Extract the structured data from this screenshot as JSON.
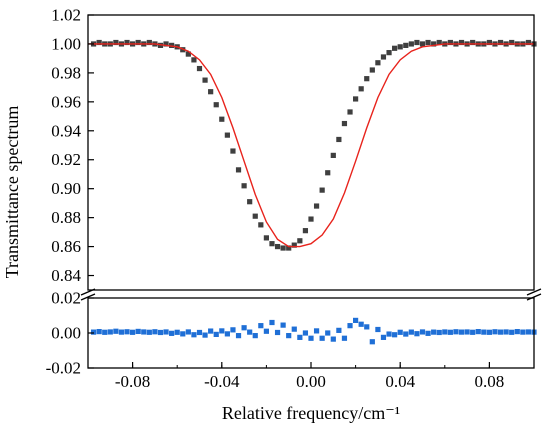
{
  "chart_data": {
    "type": "scatter",
    "xlabel": "Relative frequency/cm⁻¹",
    "ylabel": "Transmittance spectrum",
    "xlim": [
      -0.1,
      0.1
    ],
    "x_ticks": [
      -0.08,
      -0.04,
      0.0,
      0.04,
      0.08
    ],
    "x_tick_labels": [
      "-0.08",
      "-0.04",
      "0.00",
      "0.04",
      "0.08"
    ],
    "top_panel": {
      "ylim": [
        0.83,
        1.02
      ],
      "y_ticks": [
        0.84,
        0.86,
        0.88,
        0.9,
        0.92,
        0.94,
        0.96,
        0.98,
        1.0,
        1.02
      ],
      "y_tick_labels": [
        "0.84",
        "0.86",
        "0.88",
        "0.90",
        "0.92",
        "0.94",
        "0.96",
        "0.98",
        "1.00",
        "1.02"
      ],
      "series": [
        {
          "kind": "markers",
          "color": "#3f3f3f",
          "x": [
            -0.0975,
            -0.095,
            -0.0925,
            -0.09,
            -0.0875,
            -0.085,
            -0.0825,
            -0.08,
            -0.0775,
            -0.075,
            -0.0725,
            -0.07,
            -0.0675,
            -0.065,
            -0.0625,
            -0.06,
            -0.0575,
            -0.055,
            -0.0525,
            -0.05,
            -0.0475,
            -0.045,
            -0.0425,
            -0.04,
            -0.0375,
            -0.035,
            -0.0325,
            -0.03,
            -0.0275,
            -0.025,
            -0.0225,
            -0.02,
            -0.0175,
            -0.015,
            -0.0125,
            -0.01,
            -0.0075,
            -0.005,
            -0.0025,
            0.0,
            0.0025,
            0.005,
            0.0075,
            0.01,
            0.0125,
            0.015,
            0.0175,
            0.02,
            0.0225,
            0.025,
            0.0275,
            0.03,
            0.0325,
            0.035,
            0.0375,
            0.04,
            0.0425,
            0.045,
            0.0475,
            0.05,
            0.0525,
            0.055,
            0.0575,
            0.06,
            0.0625,
            0.065,
            0.0675,
            0.07,
            0.0725,
            0.075,
            0.0775,
            0.08,
            0.0825,
            0.085,
            0.0875,
            0.09,
            0.0925,
            0.095,
            0.0975,
            0.1
          ],
          "y": [
            1.0,
            1.001,
            1.0,
            1.0,
            1.001,
            1.0,
            1.001,
            1.0,
            1.001,
            1.0,
            1.001,
            1.0,
            0.999,
            1.0,
            0.999,
            0.998,
            0.996,
            0.993,
            0.989,
            0.983,
            0.975,
            0.967,
            0.958,
            0.948,
            0.937,
            0.926,
            0.913,
            0.902,
            0.891,
            0.881,
            0.875,
            0.866,
            0.862,
            0.86,
            0.859,
            0.859,
            0.861,
            0.864,
            0.871,
            0.879,
            0.888,
            0.899,
            0.911,
            0.923,
            0.934,
            0.945,
            0.953,
            0.962,
            0.969,
            0.976,
            0.982,
            0.987,
            0.991,
            0.994,
            0.997,
            0.998,
            0.999,
            1.0,
            1.001,
            1.0,
            1.001,
            1.0,
            1.001,
            1.0,
            1.001,
            1.0,
            1.001,
            1.0,
            1.001,
            1.0,
            1.0,
            1.001,
            1.0,
            1.001,
            1.0,
            1.001,
            1.0,
            1.0,
            1.001,
            1.0
          ]
        },
        {
          "kind": "fit-line",
          "color": "#e8231c",
          "x": [
            -0.1,
            -0.095,
            -0.09,
            -0.085,
            -0.08,
            -0.075,
            -0.07,
            -0.065,
            -0.06,
            -0.055,
            -0.05,
            -0.045,
            -0.04,
            -0.035,
            -0.03,
            -0.025,
            -0.02,
            -0.015,
            -0.01,
            -0.005,
            0.0,
            0.005,
            0.01,
            0.015,
            0.02,
            0.025,
            0.03,
            0.035,
            0.04,
            0.045,
            0.05,
            0.055,
            0.06,
            0.065,
            0.07,
            0.075,
            0.08,
            0.085,
            0.09,
            0.095,
            0.1
          ],
          "y": [
            1.0,
            1.0,
            1.0,
            1.0,
            1.0,
            1.0,
            1.0,
            0.999,
            0.998,
            0.995,
            0.989,
            0.979,
            0.963,
            0.942,
            0.919,
            0.896,
            0.877,
            0.865,
            0.86,
            0.86,
            0.862,
            0.868,
            0.879,
            0.897,
            0.919,
            0.942,
            0.963,
            0.979,
            0.989,
            0.995,
            0.998,
            0.999,
            1.0,
            1.0,
            1.0,
            1.0,
            1.0,
            1.0,
            1.0,
            1.0,
            1.0
          ]
        }
      ]
    },
    "bottom_panel": {
      "ylim": [
        -0.02,
        0.02
      ],
      "y_ticks": [
        -0.02,
        0.0,
        0.02
      ],
      "y_tick_labels": [
        "-0.02",
        "0.00",
        "0.02"
      ],
      "series": [
        {
          "kind": "residual-markers",
          "color": "#1f6fd6",
          "x": [
            -0.0975,
            -0.095,
            -0.0925,
            -0.09,
            -0.0875,
            -0.085,
            -0.0825,
            -0.08,
            -0.0775,
            -0.075,
            -0.0725,
            -0.07,
            -0.0675,
            -0.065,
            -0.0625,
            -0.06,
            -0.0575,
            -0.055,
            -0.0525,
            -0.05,
            -0.0475,
            -0.045,
            -0.0425,
            -0.04,
            -0.0375,
            -0.035,
            -0.0325,
            -0.03,
            -0.0275,
            -0.025,
            -0.0225,
            -0.02,
            -0.0175,
            -0.015,
            -0.0125,
            -0.01,
            -0.0075,
            -0.005,
            -0.0025,
            0.0,
            0.0025,
            0.005,
            0.0075,
            0.01,
            0.0125,
            0.015,
            0.0175,
            0.02,
            0.0225,
            0.025,
            0.0275,
            0.03,
            0.0325,
            0.035,
            0.0375,
            0.04,
            0.0425,
            0.045,
            0.0475,
            0.05,
            0.0525,
            0.055,
            0.0575,
            0.06,
            0.0625,
            0.065,
            0.0675,
            0.07,
            0.0725,
            0.075,
            0.0775,
            0.08,
            0.0825,
            0.085,
            0.0875,
            0.09,
            0.0925,
            0.095,
            0.0975,
            0.1
          ],
          "y": [
            0.0005,
            0.0008,
            0.0004,
            0.0006,
            0.001,
            0.0005,
            0.0007,
            0.0004,
            0.0009,
            0.0006,
            0.0004,
            0.0007,
            0.0003,
            0.0006,
            -0.0002,
            0.0004,
            -0.0005,
            0.0006,
            -0.001,
            0.0003,
            -0.0012,
            0.0011,
            -0.0008,
            0.0012,
            -0.0005,
            0.0018,
            -0.0015,
            0.003,
            0.0005,
            -0.0015,
            0.0042,
            0.001,
            0.006,
            0.0003,
            0.0045,
            -0.0015,
            0.0022,
            -0.0025,
            0.0,
            -0.003,
            0.0012,
            -0.003,
            0.0,
            -0.0035,
            0.0015,
            -0.003,
            0.0042,
            0.0072,
            0.005,
            0.0035,
            -0.005,
            0.002,
            -0.0025,
            -0.0006,
            -0.001,
            0.0004,
            -0.0006,
            0.0005,
            -0.0004,
            0.0006,
            -0.0002,
            0.0005,
            0.0003,
            0.0006,
            0.0004,
            0.0007,
            0.0005,
            0.0006,
            0.0004,
            0.0008,
            0.0005,
            0.0004,
            0.0007,
            0.0005,
            0.0006,
            0.0004,
            0.0008,
            0.0005,
            0.0006,
            0.0005
          ]
        }
      ]
    }
  }
}
